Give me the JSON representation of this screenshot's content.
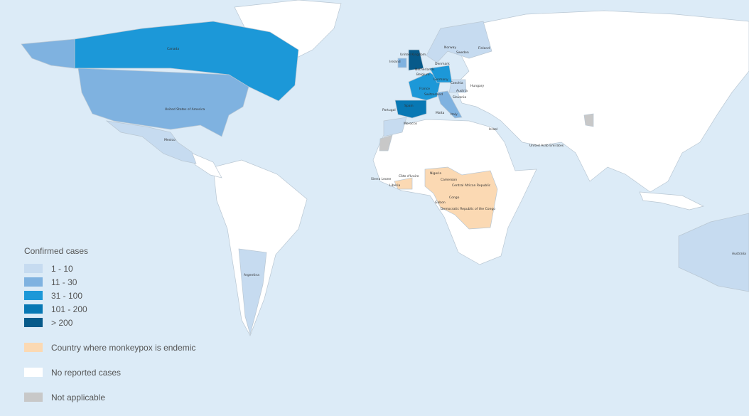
{
  "legend": {
    "title": "Confirmed cases",
    "bins": [
      {
        "label": "1 - 10",
        "color": "#c6dbf0"
      },
      {
        "label": "11 - 30",
        "color": "#7fb2e0"
      },
      {
        "label": "31 - 100",
        "color": "#1c98d8"
      },
      {
        "label": "101 - 200",
        "color": "#0878b4"
      },
      {
        "label": "> 200",
        "color": "#075a8a"
      }
    ],
    "endemic": {
      "label": "Country where monkeypox is endemic",
      "color": "#fbd9b3"
    },
    "none": {
      "label": "No reported cases",
      "color": "#ffffff"
    },
    "na": {
      "label": "Not applicable",
      "color": "#c8c8c8"
    }
  },
  "colors": {
    "ocean": "#dcebf7",
    "border": "#b9c7d3"
  },
  "countries": [
    {
      "name": "Canada",
      "category": "31 - 100"
    },
    {
      "name": "United States of America",
      "category": "11 - 30"
    },
    {
      "name": "Mexico",
      "category": "1 - 10"
    },
    {
      "name": "Argentina",
      "category": "1 - 10"
    },
    {
      "name": "Australia",
      "category": "1 - 10"
    },
    {
      "name": "United Kingdom",
      "category": "> 200"
    },
    {
      "name": "Ireland",
      "category": "11 - 30"
    },
    {
      "name": "Spain",
      "category": "101 - 200"
    },
    {
      "name": "Portugal",
      "category": "101 - 200"
    },
    {
      "name": "France",
      "category": "31 - 100"
    },
    {
      "name": "Germany",
      "category": "31 - 100"
    },
    {
      "name": "Netherlands",
      "category": "31 - 100"
    },
    {
      "name": "Belgium",
      "category": "31 - 100"
    },
    {
      "name": "Denmark",
      "category": "1 - 10"
    },
    {
      "name": "Norway",
      "category": "1 - 10"
    },
    {
      "name": "Sweden",
      "category": "1 - 10"
    },
    {
      "name": "Finland",
      "category": "1 - 10"
    },
    {
      "name": "Switzerland",
      "category": "11 - 30"
    },
    {
      "name": "Italy",
      "category": "11 - 30"
    },
    {
      "name": "Austria",
      "category": "1 - 10"
    },
    {
      "name": "Czechia",
      "category": "1 - 10"
    },
    {
      "name": "Hungary",
      "category": "1 - 10"
    },
    {
      "name": "Slovenia",
      "category": "1 - 10"
    },
    {
      "name": "Malta",
      "category": "1 - 10"
    },
    {
      "name": "Morocco",
      "category": "1 - 10"
    },
    {
      "name": "Israel",
      "category": "1 - 10"
    },
    {
      "name": "United Arab Emirates",
      "category": "1 - 10"
    },
    {
      "name": "Nigeria",
      "category": "endemic"
    },
    {
      "name": "Cameroon",
      "category": "endemic"
    },
    {
      "name": "Central African Republic",
      "category": "endemic"
    },
    {
      "name": "Congo",
      "category": "endemic"
    },
    {
      "name": "Gabon",
      "category": "endemic"
    },
    {
      "name": "Democratic Republic of the Congo",
      "category": "endemic"
    },
    {
      "name": "Sierra Leone",
      "category": "endemic"
    },
    {
      "name": "Côte d'Ivoire",
      "category": "endemic"
    },
    {
      "name": "Liberia",
      "category": "endemic"
    }
  ]
}
